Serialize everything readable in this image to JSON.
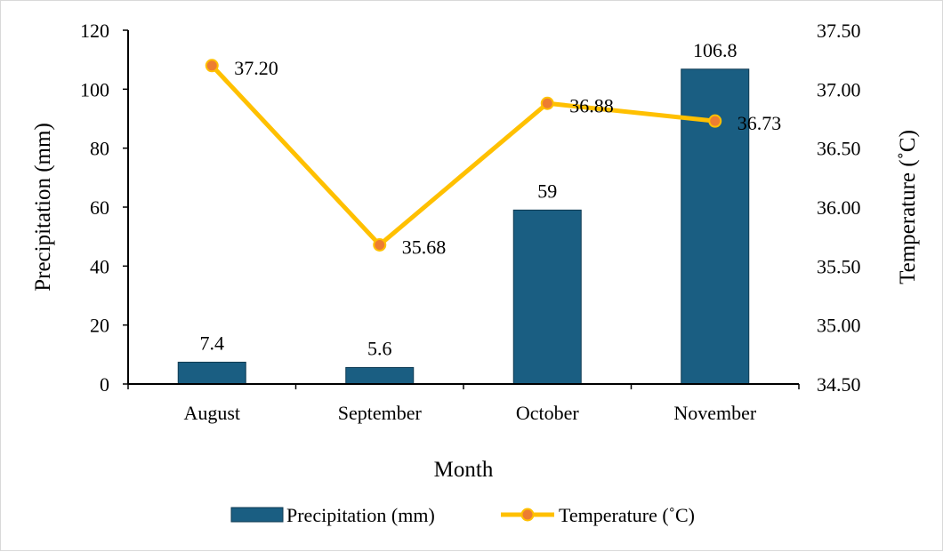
{
  "chart_data": {
    "type": "bar",
    "categories": [
      "August",
      "September",
      "October",
      "November"
    ],
    "series": [
      {
        "name": "Precipitation (mm)",
        "kind": "bar",
        "axis": "left",
        "values": [
          7.4,
          5.6,
          59,
          106.8
        ],
        "labels": [
          "7.4",
          "5.6",
          "59",
          "106.8"
        ],
        "color": "#1a5e82"
      },
      {
        "name": "Temperature (˚C)",
        "kind": "line",
        "axis": "right",
        "values": [
          37.2,
          35.68,
          36.88,
          36.73
        ],
        "labels": [
          "37.20",
          "35.68",
          "36.88",
          "36.73"
        ],
        "color": "#ffc000",
        "marker_color": "#ed7d31"
      }
    ],
    "xlabel": "Month",
    "ylabel": "Precipitation (mm)",
    "y2label": "Temperature (˚C)",
    "ylim": [
      0,
      120
    ],
    "y2lim": [
      34.5,
      37.5
    ],
    "yticks": [
      "0",
      "20",
      "40",
      "60",
      "80",
      "100",
      "120"
    ],
    "y2ticks": [
      "34.50",
      "35.00",
      "35.50",
      "36.00",
      "36.50",
      "37.00",
      "37.50"
    ],
    "grid": false,
    "legend_position": "bottom-center"
  }
}
